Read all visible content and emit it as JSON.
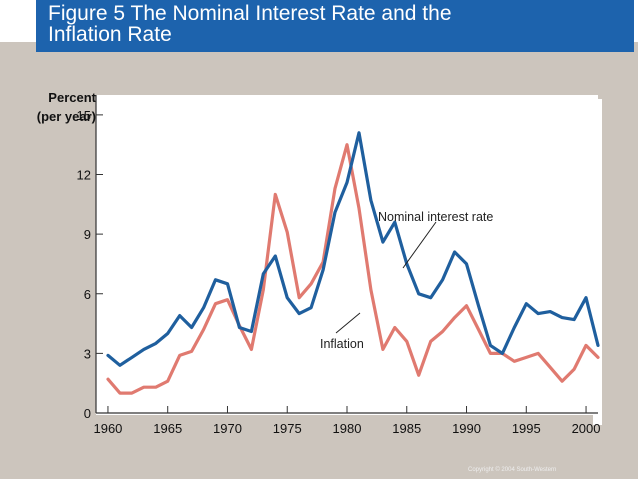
{
  "title": {
    "line1": "Figure 5 The Nominal Interest Rate and the",
    "line2": "Inflation Rate"
  },
  "copyright": "Copyright © 2004  South-Western",
  "chart_data": {
    "type": "line",
    "title": "Figure 5 The Nominal Interest Rate and the Inflation Rate",
    "xlabel": "",
    "ylabel": "Percent (per year)",
    "ylabel_lines": [
      "Percent",
      "(per year)"
    ],
    "xlim": [
      1959,
      2001
    ],
    "ylim": [
      0,
      16
    ],
    "xticks": [
      1960,
      1965,
      1970,
      1975,
      1980,
      1985,
      1990,
      1995,
      2000
    ],
    "yticks": [
      0,
      3,
      6,
      9,
      12,
      15
    ],
    "grid": false,
    "legend": "none",
    "x": [
      1960,
      1961,
      1962,
      1963,
      1964,
      1965,
      1966,
      1967,
      1968,
      1969,
      1970,
      1971,
      1972,
      1973,
      1974,
      1975,
      1976,
      1977,
      1978,
      1979,
      1980,
      1981,
      1982,
      1983,
      1984,
      1985,
      1986,
      1987,
      1988,
      1989,
      1990,
      1991,
      1992,
      1993,
      1994,
      1995,
      1996,
      1997,
      1998,
      1999,
      2000,
      2001
    ],
    "series": [
      {
        "name": "Nominal interest rate",
        "color": "#1f5f9e",
        "values": [
          2.9,
          2.4,
          2.8,
          3.2,
          3.5,
          4.0,
          4.9,
          4.3,
          5.3,
          6.7,
          6.5,
          4.3,
          4.1,
          7.0,
          7.9,
          5.8,
          5.0,
          5.3,
          7.2,
          10.1,
          11.6,
          14.1,
          10.7,
          8.6,
          9.6,
          7.5,
          6.0,
          5.8,
          6.7,
          8.1,
          7.5,
          5.4,
          3.4,
          3.0,
          4.3,
          5.5,
          5.0,
          5.1,
          4.8,
          4.7,
          5.8,
          3.4
        ]
      },
      {
        "name": "Inflation",
        "color": "#e07a70",
        "values": [
          1.7,
          1.0,
          1.0,
          1.3,
          1.3,
          1.6,
          2.9,
          3.1,
          4.2,
          5.5,
          5.7,
          4.4,
          3.2,
          6.2,
          11.0,
          9.1,
          5.8,
          6.5,
          7.6,
          11.3,
          13.5,
          10.3,
          6.2,
          3.2,
          4.3,
          3.6,
          1.9,
          3.6,
          4.1,
          4.8,
          5.4,
          4.2,
          3.0,
          3.0,
          2.6,
          2.8,
          3.0,
          2.3,
          1.6,
          2.2,
          3.4,
          2.8
        ]
      }
    ],
    "annotations": [
      {
        "text": "Nominal interest rate",
        "series": 0
      },
      {
        "text": "Inflation",
        "series": 1
      }
    ]
  }
}
